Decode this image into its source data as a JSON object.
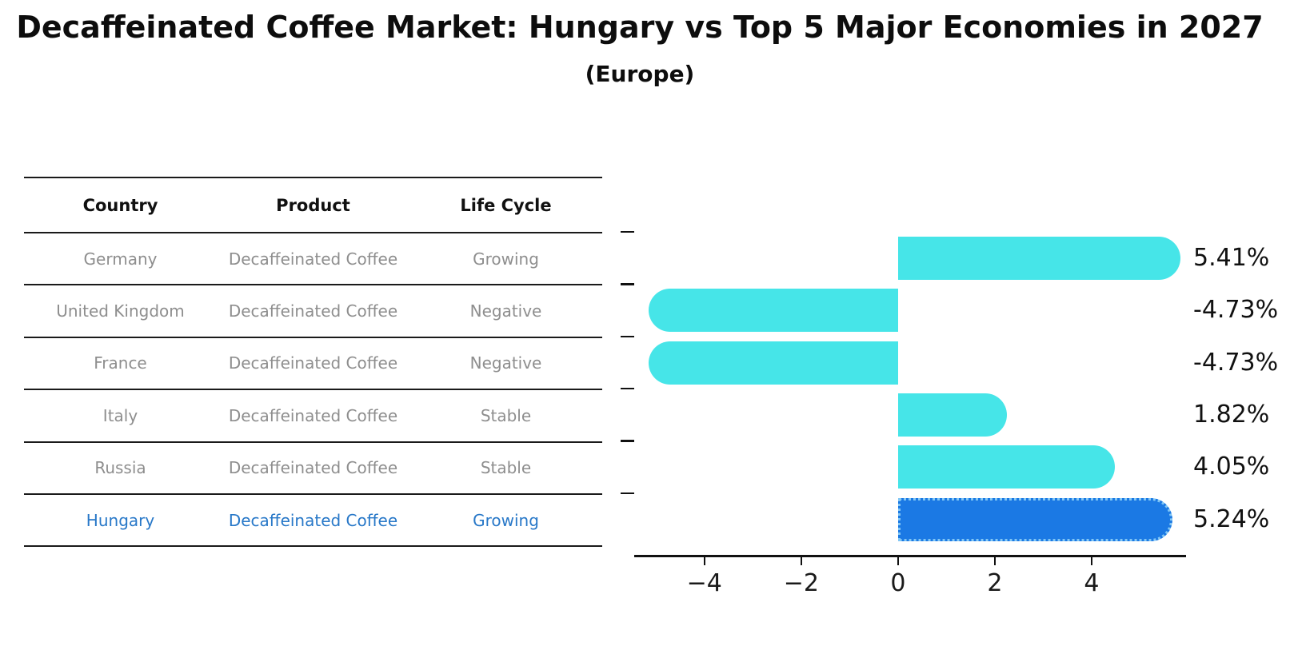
{
  "title": "Decaffeinated Coffee Market: Hungary vs Top 5 Major Economies in 2027",
  "subtitle": "(Europe)",
  "table": {
    "headers": [
      "Country",
      "Product",
      "Life Cycle"
    ],
    "rows": [
      {
        "country": "Germany",
        "product": "Decaffeinated Coffee",
        "life_cycle": "Growing",
        "highlight": false
      },
      {
        "country": "United Kingdom",
        "product": "Decaffeinated Coffee",
        "life_cycle": "Negative",
        "highlight": false
      },
      {
        "country": "France",
        "product": "Decaffeinated Coffee",
        "life_cycle": "Negative",
        "highlight": false
      },
      {
        "country": "Italy",
        "product": "Decaffeinated Coffee",
        "life_cycle": "Stable",
        "highlight": false
      },
      {
        "country": "Hungary",
        "product": "Decaffeinated Coffee",
        "life_cycle": "Growing",
        "highlight": true
      }
    ]
  },
  "chart_data": {
    "type": "bar",
    "orientation": "horizontal",
    "categories": [
      "Germany",
      "United Kingdom",
      "France",
      "Italy",
      "Russia",
      "Hungary"
    ],
    "values": [
      5.41,
      -4.73,
      -4.73,
      1.82,
      4.05,
      5.24
    ],
    "value_labels": [
      "5.41%",
      "-4.73%",
      "-4.73%",
      "1.82%",
      "4.05%",
      "5.24%"
    ],
    "highlight_index": 5,
    "xlim": [
      -5.45,
      5.95
    ],
    "xticks": [
      -4,
      -2,
      0,
      2,
      4
    ],
    "xtick_labels": [
      "−4",
      "−2",
      "0",
      "2",
      "4"
    ],
    "grid": false,
    "legend": "none",
    "bar_color": "#46e5e8",
    "highlight_bar_color": "#1b79e4",
    "highlight_border_color": "#82c7f5",
    "highlight_text_color": "#2878c8",
    "table_text_color": "#8e8e8e"
  },
  "note": {
    "russia_row": {
      "country": "Russia",
      "product": "Decaffeinated Coffee",
      "life_cycle": "Stable",
      "highlight": false
    }
  }
}
